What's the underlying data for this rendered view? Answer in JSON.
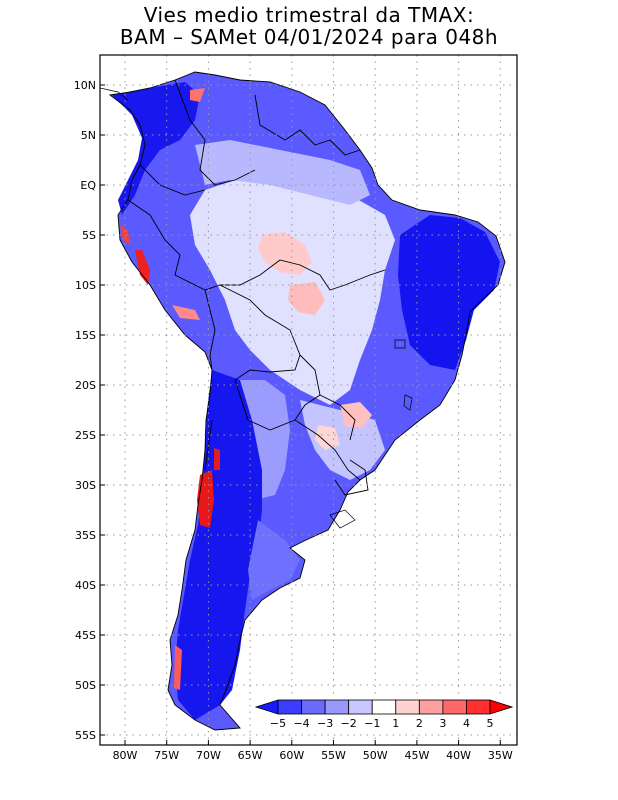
{
  "title_line1": "Vies medio trimestral da TMAX:",
  "title_line2": "BAM – SAMet 04/01/2024  para 048h",
  "lat_labels": [
    "10N",
    "5N",
    "EQ",
    "5S",
    "10S",
    "15S",
    "20S",
    "25S",
    "30S",
    "35S",
    "40S",
    "45S",
    "50S",
    "55S"
  ],
  "lon_labels": [
    "80W",
    "75W",
    "70W",
    "65W",
    "60W",
    "55W",
    "50W",
    "45W",
    "40W",
    "35W"
  ],
  "colorbar": {
    "tick_labels": [
      "-5",
      "-4",
      "-3",
      "-2",
      "-1",
      "1",
      "2",
      "3",
      "4",
      "5"
    ],
    "colors": [
      "#1a1aff",
      "#3c3cff",
      "#6a6aff",
      "#9898ff",
      "#c8c8ff",
      "#ffffff",
      "#ffd2d2",
      "#ffa0a0",
      "#ff6868",
      "#ff3030",
      "#ff0000"
    ]
  },
  "colors": {
    "strong_cold": "#1212ee",
    "mid_cold": "#5a5aff",
    "light_cold": "#b4b4ff",
    "pale": "#e4e4ff",
    "warm": "#ffb4b4",
    "hot": "#ee1010",
    "grid": "#9a9a9a",
    "border": "#000000"
  }
}
